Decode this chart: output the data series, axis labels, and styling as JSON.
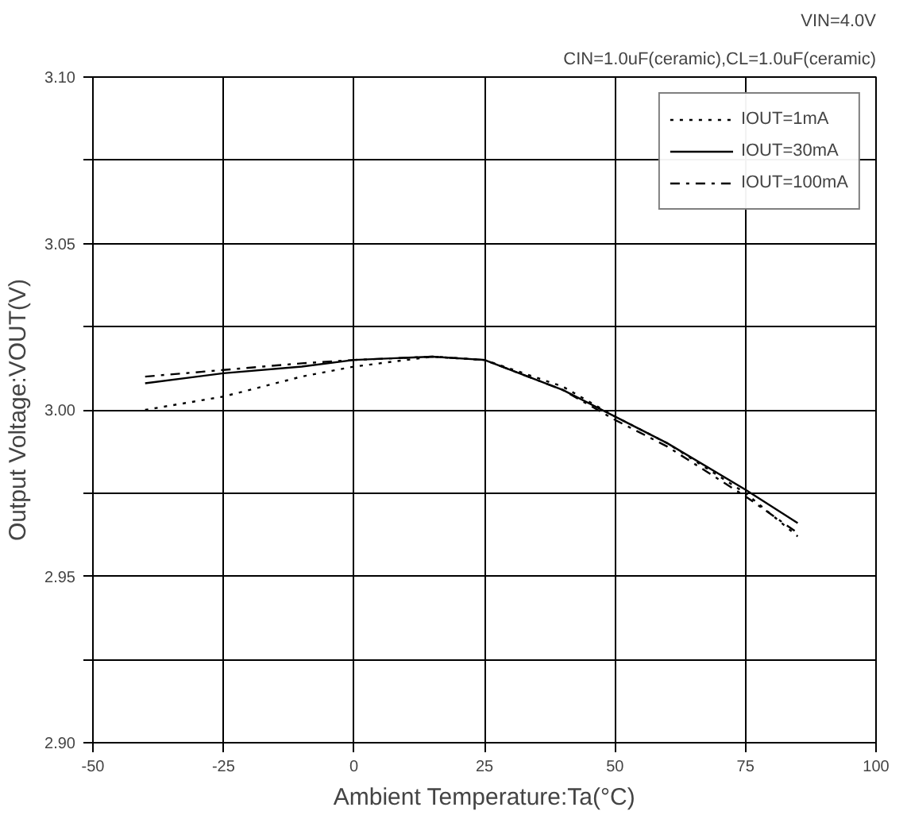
{
  "chart_data": {
    "type": "line",
    "xlabel": "Ambient Temperature:Ta(°C)",
    "ylabel": "Output Voltage:VOUT(V)",
    "annotations": [
      "VIN=4.0V",
      "CIN=1.0uF(ceramic),CL=1.0uF(ceramic)"
    ],
    "xlim": [
      -50,
      100
    ],
    "xticks": [
      -50,
      -25,
      0,
      25,
      50,
      75,
      100
    ],
    "ylim": [
      2.9,
      3.1
    ],
    "yticks": [
      {
        "value": 2.9,
        "label": "2.90"
      },
      {
        "value": 2.925,
        "label": null
      },
      {
        "value": 2.95,
        "label": "2.95"
      },
      {
        "value": 2.975,
        "label": null
      },
      {
        "value": 3.0,
        "label": "3.00"
      },
      {
        "value": 3.025,
        "label": null
      },
      {
        "value": 3.05,
        "label": "3.05"
      },
      {
        "value": 3.075,
        "label": null
      },
      {
        "value": 3.1,
        "label": "3.10"
      }
    ],
    "grid": true,
    "legend": "top right",
    "marker": "none",
    "series": [
      {
        "name": "IOUT=1mA",
        "color": "#000000",
        "line_style": "dotted",
        "x": [
          -40,
          -25,
          -10,
          0,
          15,
          25,
          40,
          50,
          60,
          75,
          85
        ],
        "values": [
          3.0,
          3.004,
          3.01,
          3.013,
          3.016,
          3.015,
          3.007,
          2.998,
          2.99,
          2.975,
          2.962
        ]
      },
      {
        "name": "IOUT=30mA",
        "color": "#000000",
        "line_style": "solid",
        "x": [
          -40,
          -25,
          -10,
          0,
          15,
          25,
          40,
          50,
          60,
          75,
          85
        ],
        "values": [
          3.008,
          3.011,
          3.013,
          3.015,
          3.016,
          3.015,
          3.006,
          2.998,
          2.99,
          2.976,
          2.966
        ]
      },
      {
        "name": "IOUT=100mA",
        "color": "#000000",
        "line_style": "dashdot",
        "x": [
          -40,
          -25,
          -10,
          0,
          15,
          25,
          40,
          50,
          60,
          75,
          85
        ],
        "values": [
          3.01,
          3.012,
          3.014,
          3.015,
          3.016,
          3.015,
          3.006,
          2.997,
          2.989,
          2.974,
          2.963
        ]
      }
    ]
  }
}
